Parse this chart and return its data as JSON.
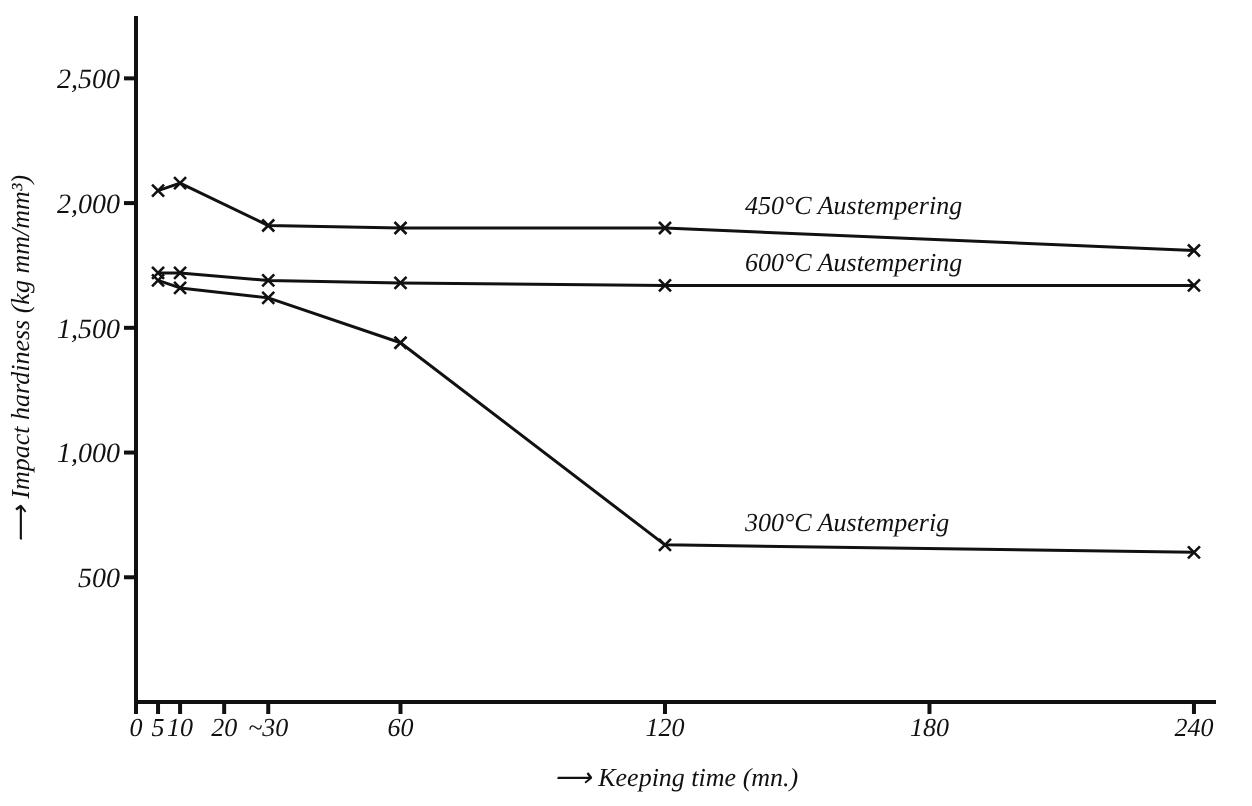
{
  "chart_data": {
    "type": "line",
    "xlabel": "⟶ Keeping time (mn.)",
    "ylabel": "⟶ Impact hardiness (kg mm/mm³)",
    "x": [
      5,
      10,
      30,
      60,
      120,
      240
    ],
    "series": [
      {
        "name": "450°C Austempering",
        "color": "#111111",
        "values": [
          2050,
          2080,
          1910,
          1900,
          1900,
          1810
        ]
      },
      {
        "name": "600°C Austempering",
        "color": "#111111",
        "values": [
          1720,
          1720,
          1690,
          1680,
          1670,
          1670
        ]
      },
      {
        "name": "300°C Austemperig",
        "color": "#111111",
        "values": [
          1690,
          1660,
          1620,
          1440,
          630,
          600
        ]
      }
    ],
    "xlim": [
      0,
      245
    ],
    "xticks": [
      0,
      5,
      10,
      20,
      {
        "value": 30,
        "label": "~30"
      },
      60,
      120,
      180,
      240
    ],
    "ylim": [
      0,
      2750
    ],
    "yticks": [
      {
        "value": 500,
        "label": "500"
      },
      {
        "value": 1000,
        "label": "1,000"
      },
      {
        "value": 1500,
        "label": "1,500"
      },
      {
        "value": 2000,
        "label": "2,000"
      },
      {
        "value": 2500,
        "label": "2,500"
      }
    ],
    "grid": false,
    "legend": false,
    "marker": "cross",
    "line_style": "solid"
  }
}
